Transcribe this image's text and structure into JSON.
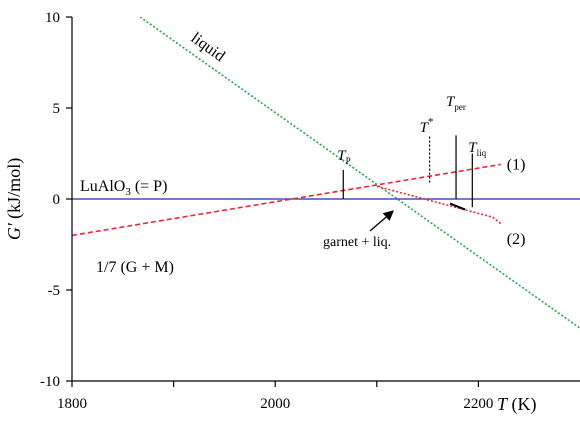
{
  "chart_data": {
    "type": "line",
    "title": "",
    "xlabel": {
      "symbol": "T",
      "unit": "(K)"
    },
    "ylabel": {
      "symbol": "G'",
      "unit": "(kJ/mol)"
    },
    "xlim": [
      1800,
      2300
    ],
    "ylim": [
      -10,
      10
    ],
    "xticks": [
      1800,
      2000,
      2200
    ],
    "xticks_minor": [
      1900,
      2100
    ],
    "yticks": [
      -10,
      -5,
      0,
      5,
      10
    ],
    "grid": false,
    "series": [
      {
        "name": "LuAlO3 (= P)",
        "label_parts": [
          "LuAlO",
          "3",
          " (= P)"
        ],
        "style": "solid",
        "color": "#2a2a9c",
        "x": [
          1800,
          2300
        ],
        "y": [
          0,
          0
        ]
      },
      {
        "name": "1/7 (G + M)",
        "style": "dashed",
        "color": "#e8283a",
        "x": [
          1800,
          2222
        ],
        "y": [
          -2.0,
          1.9
        ]
      },
      {
        "name": "liquid",
        "style": "dotted",
        "color": "#22a846",
        "x": [
          1867,
          2300
        ],
        "y": [
          10,
          -7.1
        ]
      },
      {
        "name": "",
        "style": "dotted",
        "color": "#e8283a",
        "x": [
          2100,
          2214,
          2222
        ],
        "y": [
          0.7,
          -1.0,
          -1.35
        ]
      },
      {
        "name": "garnet + liq.",
        "style": "solid",
        "color": "#000000",
        "x": [
          2172,
          2187
        ],
        "y": [
          -0.25,
          -0.58
        ]
      }
    ],
    "annotations": {
      "series_numbers": [
        {
          "text": "(1)",
          "x": 2222,
          "y": 1.9
        },
        {
          "text": "(2)",
          "x": 2222,
          "y": -2.2
        }
      ],
      "garnet_liq_label": "garnet + liq.",
      "temperature_markers": [
        {
          "name": "T_P",
          "main": "T",
          "sub": "P",
          "x": 2067,
          "y_from": 0,
          "y_to": 1.6,
          "style": "solid"
        },
        {
          "name": "T*",
          "main": "T",
          "sup": "*",
          "x": 2152,
          "y_from": 0.9,
          "y_to": 3.5,
          "style": "dotted"
        },
        {
          "name": "T_per",
          "main": "T",
          "sub": "per",
          "x": 2178,
          "y_from": 0,
          "y_to": 3.5,
          "style": "solid"
        },
        {
          "name": "T_liq",
          "main": "T",
          "sub": "liq",
          "x": 2194,
          "y_from": -0.45,
          "y_to": 2.5,
          "style": "solid"
        }
      ]
    }
  }
}
